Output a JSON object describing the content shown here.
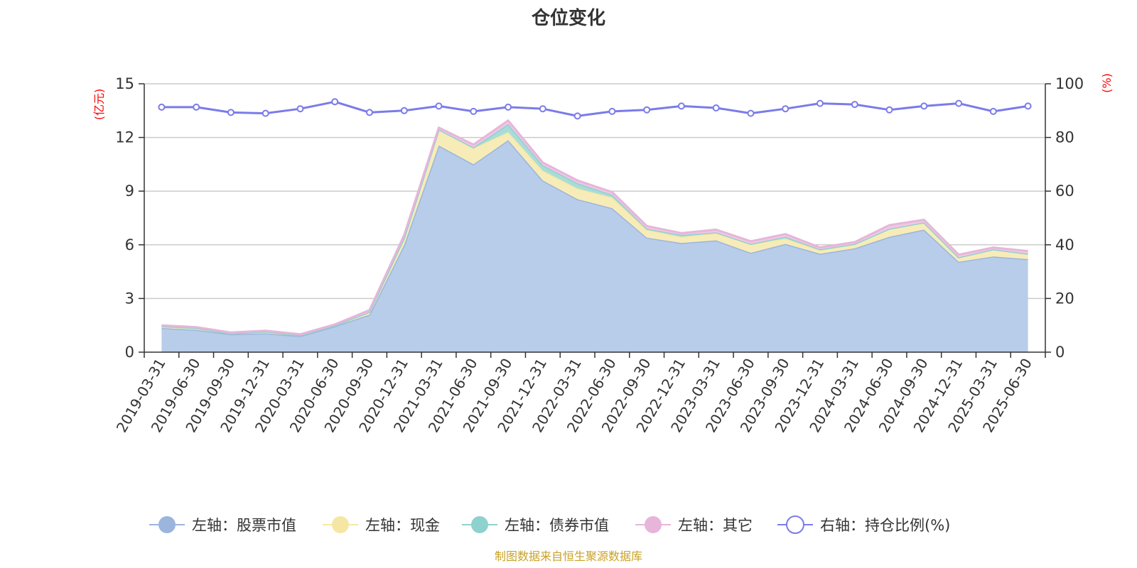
{
  "chart_data": {
    "type": "area",
    "title": "仓位变化",
    "left_unit": "(亿元)",
    "right_unit": "(%)",
    "left_ylim": [
      0,
      15
    ],
    "left_yticks": [
      0,
      3,
      6,
      9,
      12,
      15
    ],
    "right_ylim": [
      0,
      100
    ],
    "right_yticks": [
      0,
      20,
      40,
      60,
      80,
      100
    ],
    "grid": true,
    "legend_position": "bottom",
    "categories": [
      "2019-03-31",
      "2019-06-30",
      "2019-09-30",
      "2019-12-31",
      "2020-03-31",
      "2020-06-30",
      "2020-09-30",
      "2020-12-31",
      "2021-03-31",
      "2021-06-30",
      "2021-09-30",
      "2021-12-31",
      "2022-03-31",
      "2022-06-30",
      "2022-09-30",
      "2022-12-31",
      "2023-03-31",
      "2023-06-30",
      "2023-09-30",
      "2023-12-31",
      "2024-03-31",
      "2024-06-30",
      "2024-09-30",
      "2024-12-31",
      "2025-03-31",
      "2025-06-30"
    ],
    "series": [
      {
        "name": "左轴：股票市值",
        "axis": "left",
        "type": "area",
        "color": "#9bb5dd",
        "fill": "#b8cdea",
        "values": [
          1.35,
          1.25,
          1.0,
          1.05,
          0.9,
          1.45,
          2.1,
          6.0,
          11.55,
          10.5,
          11.85,
          9.6,
          8.55,
          8.05,
          6.4,
          6.1,
          6.25,
          5.55,
          6.05,
          5.5,
          5.8,
          6.45,
          6.85,
          5.05,
          5.35,
          5.2
        ]
      },
      {
        "name": "左轴：现金",
        "axis": "left",
        "type": "area",
        "color": "#f5e7a3",
        "fill": "#f7ecb8",
        "values": [
          0.1,
          0.1,
          0.05,
          0.1,
          0.05,
          0.05,
          0.15,
          0.4,
          0.9,
          0.9,
          0.45,
          0.55,
          0.6,
          0.6,
          0.45,
          0.35,
          0.4,
          0.5,
          0.3,
          0.2,
          0.25,
          0.45,
          0.4,
          0.25,
          0.4,
          0.3
        ]
      },
      {
        "name": "左轴：债券市值",
        "axis": "left",
        "type": "area",
        "color": "#8fd1cf",
        "fill": "#a8dcd9",
        "values": [
          0,
          0,
          0,
          0,
          0,
          0,
          0,
          0,
          0,
          0.05,
          0.45,
          0.3,
          0.3,
          0.15,
          0.05,
          0.1,
          0.05,
          0,
          0.1,
          0.05,
          0,
          0,
          0,
          0,
          0,
          0
        ]
      },
      {
        "name": "左轴：其它",
        "axis": "left",
        "type": "area",
        "color": "#e7b5da",
        "fill": "#efc9e4",
        "values": [
          0.05,
          0.05,
          0.05,
          0.05,
          0.05,
          0.05,
          0.1,
          0.15,
          0.1,
          0.15,
          0.2,
          0.15,
          0.15,
          0.15,
          0.15,
          0.1,
          0.15,
          0.15,
          0.15,
          0.1,
          0.1,
          0.2,
          0.15,
          0.15,
          0.1,
          0.15
        ]
      },
      {
        "name": "右轴：持仓比例(%)",
        "axis": "right",
        "type": "line",
        "color": "#7b7bea",
        "values": [
          91.3,
          91.3,
          89.3,
          89.0,
          90.7,
          93.3,
          89.3,
          90.0,
          91.7,
          89.7,
          91.3,
          90.7,
          88.0,
          89.7,
          90.3,
          91.7,
          91.0,
          89.0,
          90.7,
          92.7,
          92.3,
          90.3,
          91.7,
          92.7,
          89.7,
          91.7
        ]
      }
    ],
    "source": "制图数据来自恒生聚源数据库"
  }
}
